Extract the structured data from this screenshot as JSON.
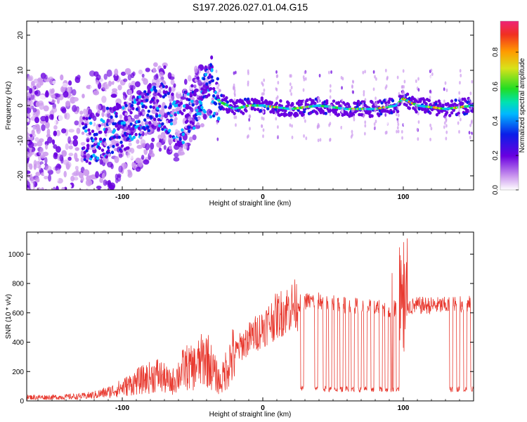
{
  "title": "S197.2026.027.01.04.G15",
  "chart_data": [
    {
      "type": "heatmap",
      "xlabel": "Height of straight line (km)",
      "ylabel": "Frequency (Hz)",
      "xlim": [
        -168,
        150
      ],
      "ylim": [
        -24,
        24
      ],
      "x_ticks": [
        -100,
        0,
        100
      ],
      "y_ticks": [
        -20,
        -10,
        0,
        10,
        20
      ],
      "ridge": {
        "x": [
          -168,
          -140,
          -120,
          -100,
          -90,
          -80,
          -70,
          -60,
          -55,
          -50,
          -45,
          -40,
          -35,
          -30,
          -20,
          -10,
          0,
          20,
          40,
          60,
          80,
          95,
          100,
          110,
          130,
          150
        ],
        "y": [
          -15,
          -12,
          -9,
          -6,
          -4,
          -2,
          0,
          -5,
          -3,
          0,
          2,
          4,
          3,
          1,
          -1,
          0,
          0,
          -1,
          0,
          -1,
          -1,
          0,
          2,
          0,
          -1,
          0
        ]
      },
      "colorbar": {
        "label": "Normalized spectral amplitude",
        "ticks": [
          "0.0",
          "0.2",
          "0.4",
          "0.6",
          "0.8"
        ],
        "range": [
          0,
          0.98
        ]
      }
    },
    {
      "type": "line",
      "xlabel": "Height of straight line (km)",
      "ylabel": "SNR (10 * v/v)",
      "xlim": [
        -168,
        150
      ],
      "ylim": [
        0,
        1150
      ],
      "x_ticks": [
        -100,
        0,
        100
      ],
      "y_ticks": [
        0,
        200,
        400,
        600,
        800,
        1000
      ],
      "series": [
        {
          "name": "SNR",
          "color": "#e83a30",
          "x": [
            -168,
            -150,
            -130,
            -120,
            -110,
            -100,
            -90,
            -80,
            -75,
            -70,
            -65,
            -60,
            -55,
            -50,
            -45,
            -40,
            -35,
            -30,
            -25,
            -20,
            -15,
            -10,
            -5,
            0,
            5,
            10,
            15,
            20,
            25,
            30,
            40,
            50,
            60,
            70,
            80,
            90,
            95,
            100,
            105,
            110,
            120,
            130,
            140,
            150
          ],
          "y": [
            25,
            25,
            30,
            40,
            60,
            90,
            130,
            160,
            180,
            150,
            120,
            180,
            230,
            220,
            260,
            300,
            200,
            120,
            250,
            320,
            380,
            420,
            460,
            500,
            540,
            580,
            610,
            640,
            660,
            680,
            680,
            670,
            650,
            640,
            630,
            620,
            640,
            680,
            640,
            650,
            650,
            650,
            655,
            660
          ]
        }
      ],
      "dropouts_x": [
        28,
        38,
        44,
        48,
        52,
        56,
        60,
        64,
        69,
        73,
        78,
        84,
        88,
        92,
        96,
        101,
        134,
        139,
        144,
        149
      ]
    }
  ]
}
